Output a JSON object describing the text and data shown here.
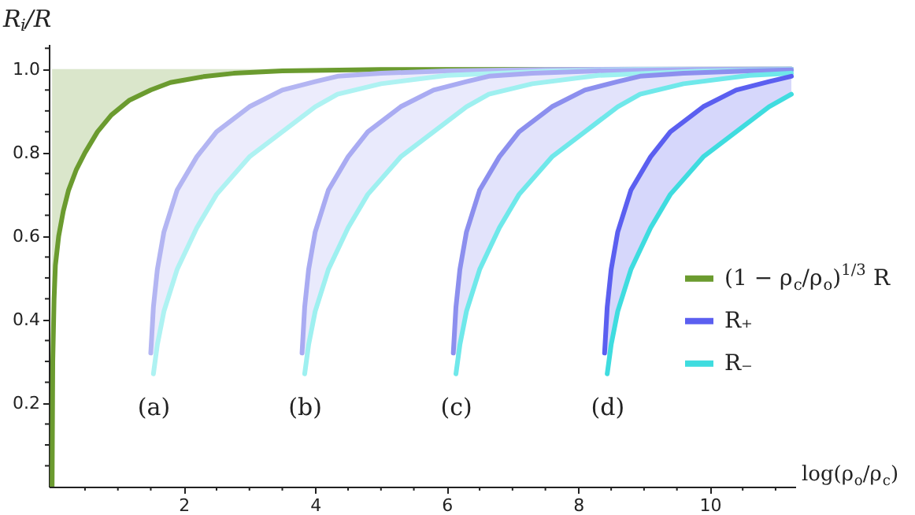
{
  "chart_data": {
    "type": "line",
    "xlabel": "log(ρ$_{o}$/ρ$_{c}$)",
    "ylabel": "R$_{i}$/R",
    "xlim": [
      -0.05,
      11.3
    ],
    "ylim": [
      0,
      1.06
    ],
    "xticks": [
      {
        "value": 0.5,
        "label": null
      },
      {
        "value": 1,
        "label": null
      },
      {
        "value": 1.5,
        "label": null
      },
      2,
      {
        "value": 2.5,
        "label": null
      },
      {
        "value": 3,
        "label": null
      },
      {
        "value": 3.5,
        "label": null
      },
      4,
      {
        "value": 4.5,
        "label": null
      },
      {
        "value": 5,
        "label": null
      },
      {
        "value": 5.5,
        "label": null
      },
      6,
      {
        "value": 6.5,
        "label": null
      },
      {
        "value": 7,
        "label": null
      },
      {
        "value": 7.5,
        "label": null
      },
      8,
      {
        "value": 8.5,
        "label": null
      },
      {
        "value": 9,
        "label": null
      },
      {
        "value": 9.5,
        "label": null
      },
      10,
      {
        "value": 10.5,
        "label": null
      },
      {
        "value": 11,
        "label": null
      }
    ],
    "yticks": [
      {
        "value": 0.05,
        "label": null
      },
      {
        "value": 0.1,
        "label": null
      },
      {
        "value": 0.15,
        "label": null
      },
      0.2,
      {
        "value": 0.25,
        "label": null
      },
      {
        "value": 0.3,
        "label": null
      },
      {
        "value": 0.35,
        "label": null
      },
      0.4,
      {
        "value": 0.45,
        "label": null
      },
      {
        "value": 0.5,
        "label": null
      },
      {
        "value": 0.55,
        "label": null
      },
      0.6,
      {
        "value": 0.65,
        "label": null
      },
      {
        "value": 0.7,
        "label": null
      },
      {
        "value": 0.75,
        "label": null
      },
      0.8,
      {
        "value": 0.85,
        "label": null
      },
      {
        "value": 0.9,
        "label": null
      },
      {
        "value": 0.95,
        "label": null
      },
      {
        "value": 1,
        "label": "1.0"
      },
      {
        "value": 1.05,
        "label": null
      }
    ],
    "grid": false,
    "legend": "right",
    "marker": "none",
    "line_style": "solid",
    "series": [
      {
        "name": "(1 − ρ$_{c}$/ρ$_{o}$)$^{1/3}$ R",
        "color": "#6b9b2f",
        "x": [
          0,
          0.01,
          0.03,
          0.05,
          0.1,
          0.17,
          0.25,
          0.37,
          0.5,
          0.69,
          0.9,
          1.17,
          1.5,
          1.8,
          2.3,
          2.76,
          3.5,
          5,
          11.24
        ],
        "values": [
          0,
          0.3,
          0.45,
          0.53,
          0.6,
          0.66,
          0.71,
          0.76,
          0.8,
          0.85,
          0.89,
          0.925,
          0.95,
          0.968,
          0.982,
          0.99,
          0.996,
          0.999,
          1.0
        ],
        "lower": [
          0,
          0.3,
          0.45,
          0.53,
          0.6,
          0.66,
          0.71,
          0.76,
          0.8,
          0.85,
          0.89,
          0.925,
          0.95,
          0.968,
          0.982,
          0.99,
          0.996,
          0.999,
          1.0
        ],
        "upper": [
          1,
          1,
          1,
          1,
          1,
          1,
          1,
          1,
          1,
          1,
          1,
          1,
          1,
          1,
          1,
          1,
          1,
          1,
          1
        ]
      },
      {
        "color": "#b3b5f2",
        "x": [
          1.5,
          1.54,
          1.6,
          1.7,
          1.9,
          2.2,
          2.5,
          3.0,
          3.5,
          4.0,
          4.34,
          5.0,
          6.0,
          7.5,
          8.9,
          11.24
        ],
        "values": [
          0.32,
          0.43,
          0.52,
          0.61,
          0.71,
          0.79,
          0.85,
          0.91,
          0.95,
          0.97,
          0.983,
          0.99,
          0.996,
          0.999,
          1.0,
          1.0
        ],
        "lower": [
          null,
          0.27,
          0.34,
          0.42,
          0.52,
          0.62,
          0.7,
          0.79,
          0.85,
          0.91,
          0.94,
          0.965,
          0.985,
          0.995,
          0.999,
          1.0
        ],
        "upper": [
          null,
          0.43,
          0.52,
          0.61,
          0.71,
          0.79,
          0.85,
          0.91,
          0.95,
          0.97,
          0.983,
          0.99,
          0.996,
          0.999,
          1.0,
          1.0
        ]
      },
      {
        "color": "#aef2f2",
        "x": [
          1.54,
          1.6,
          1.7,
          1.9,
          2.2,
          2.5,
          3.0,
          3.5,
          4.0,
          4.34,
          5.0,
          6.0,
          7.5,
          8.9,
          11.24
        ],
        "values": [
          0.27,
          0.34,
          0.42,
          0.52,
          0.62,
          0.7,
          0.79,
          0.85,
          0.91,
          0.94,
          0.965,
          0.985,
          0.995,
          0.999,
          1.0
        ]
      },
      {
        "color": "#a9abf2",
        "x": [
          3.8,
          3.84,
          3.9,
          4.0,
          4.2,
          4.5,
          4.8,
          5.3,
          5.8,
          6.3,
          6.64,
          7.3,
          8.3,
          9.8,
          11.24
        ],
        "values": [
          0.32,
          0.43,
          0.52,
          0.61,
          0.71,
          0.79,
          0.85,
          0.91,
          0.95,
          0.97,
          0.983,
          0.99,
          0.996,
          0.999,
          1.0
        ],
        "lower": [
          null,
          0.27,
          0.34,
          0.42,
          0.52,
          0.62,
          0.7,
          0.79,
          0.85,
          0.91,
          0.94,
          0.965,
          0.985,
          0.995,
          0.999
        ],
        "upper": [
          null,
          0.43,
          0.52,
          0.61,
          0.71,
          0.79,
          0.85,
          0.91,
          0.95,
          0.97,
          0.983,
          0.99,
          0.996,
          0.999,
          1.0
        ]
      },
      {
        "color": "#9ef0f0",
        "x": [
          3.84,
          3.9,
          4.0,
          4.2,
          4.5,
          4.8,
          5.3,
          5.8,
          6.3,
          6.64,
          7.3,
          8.3,
          9.8,
          11.24
        ],
        "values": [
          0.27,
          0.34,
          0.42,
          0.52,
          0.62,
          0.7,
          0.79,
          0.85,
          0.91,
          0.94,
          0.965,
          0.985,
          0.995,
          0.999
        ]
      },
      {
        "color": "#8c8fee",
        "x": [
          6.1,
          6.14,
          6.2,
          6.3,
          6.5,
          6.8,
          7.1,
          7.6,
          8.1,
          8.6,
          8.94,
          9.6,
          10.6,
          11.24
        ],
        "values": [
          0.32,
          0.43,
          0.52,
          0.61,
          0.71,
          0.79,
          0.85,
          0.91,
          0.95,
          0.97,
          0.983,
          0.99,
          0.996,
          0.998
        ],
        "lower": [
          null,
          0.27,
          0.34,
          0.42,
          0.52,
          0.62,
          0.7,
          0.79,
          0.85,
          0.91,
          0.94,
          0.965,
          0.985,
          0.99
        ],
        "upper": [
          null,
          0.43,
          0.52,
          0.61,
          0.71,
          0.79,
          0.85,
          0.91,
          0.95,
          0.97,
          0.983,
          0.99,
          0.996,
          0.998
        ]
      },
      {
        "color": "#6fe8ea",
        "x": [
          6.14,
          6.2,
          6.3,
          6.5,
          6.8,
          7.1,
          7.6,
          8.1,
          8.6,
          8.94,
          9.6,
          10.6,
          11.24
        ],
        "values": [
          0.27,
          0.34,
          0.42,
          0.52,
          0.62,
          0.7,
          0.79,
          0.85,
          0.91,
          0.94,
          0.965,
          0.985,
          0.99
        ]
      },
      {
        "name": "R₊",
        "color": "#5b5ff0",
        "x": [
          8.4,
          8.44,
          8.5,
          8.6,
          8.8,
          9.1,
          9.4,
          9.9,
          10.4,
          10.9,
          11.24
        ],
        "values": [
          0.32,
          0.43,
          0.52,
          0.61,
          0.71,
          0.79,
          0.85,
          0.91,
          0.95,
          0.97,
          0.983
        ],
        "lower": [
          null,
          0.27,
          0.34,
          0.42,
          0.52,
          0.62,
          0.7,
          0.79,
          0.85,
          0.91,
          0.94
        ],
        "upper": [
          null,
          0.43,
          0.52,
          0.61,
          0.71,
          0.79,
          0.85,
          0.91,
          0.95,
          0.97,
          0.983
        ]
      },
      {
        "name": "R₋",
        "color": "#3fdcdf",
        "x": [
          8.44,
          8.5,
          8.6,
          8.8,
          9.1,
          9.4,
          9.9,
          10.4,
          10.9,
          11.24
        ],
        "values": [
          0.27,
          0.34,
          0.42,
          0.52,
          0.62,
          0.7,
          0.79,
          0.85,
          0.91,
          0.94
        ]
      }
    ],
    "annotations": [
      "(a)",
      "(b)",
      "(c)",
      "(d)"
    ]
  }
}
